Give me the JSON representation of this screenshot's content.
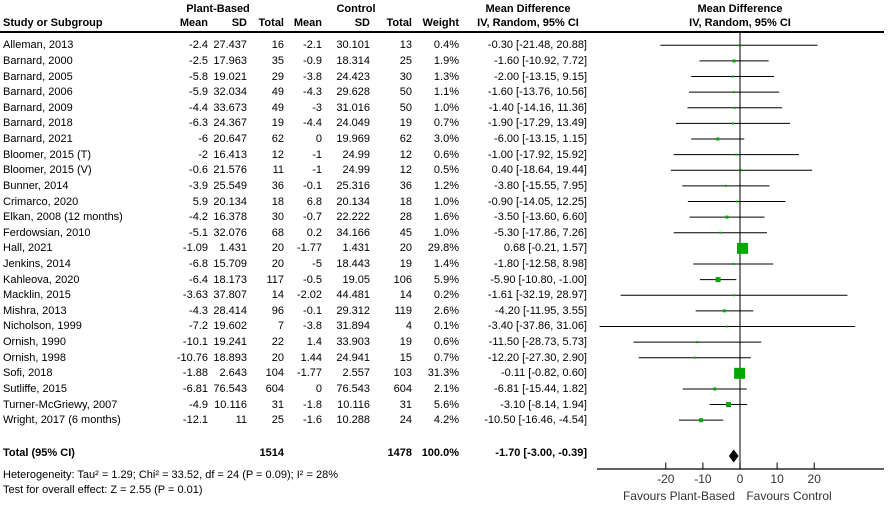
{
  "header": {
    "study_col": "Study or Subgroup",
    "group1": "Plant-Based",
    "group2": "Control",
    "sub_cols": [
      "Mean",
      "SD",
      "Total",
      "Mean",
      "SD",
      "Total",
      "Weight"
    ],
    "md_text": {
      "line1": "Mean Difference",
      "line2": "IV, Random, 95% CI"
    },
    "md_plot": {
      "line1": "Mean Difference",
      "line2": "IV, Random, 95% CI"
    }
  },
  "chart_data": {
    "type": "forest",
    "effect_measure": "Mean Difference IV, Random, 95% CI",
    "studies": [
      {
        "name": "Alleman, 2013",
        "pb_mean": "-2.4",
        "pb_sd": "27.437",
        "pb_total": "16",
        "c_mean": "-2.1",
        "c_sd": "30.101",
        "c_total": "13",
        "weight": "0.4%",
        "est": -0.3,
        "lo": -21.48,
        "hi": 20.88,
        "text": "-0.30 [-21.48, 20.88]"
      },
      {
        "name": "Barnard, 2000",
        "pb_mean": "-2.5",
        "pb_sd": "17.963",
        "pb_total": "35",
        "c_mean": "-0.9",
        "c_sd": "18.314",
        "c_total": "25",
        "weight": "1.9%",
        "est": -1.6,
        "lo": -10.92,
        "hi": 7.72,
        "text": "-1.60 [-10.92, 7.72]"
      },
      {
        "name": "Barnard, 2005",
        "pb_mean": "-5.8",
        "pb_sd": "19.021",
        "pb_total": "29",
        "c_mean": "-3.8",
        "c_sd": "24.423",
        "c_total": "30",
        "weight": "1.3%",
        "est": -2.0,
        "lo": -13.15,
        "hi": 9.15,
        "text": "-2.00 [-13.15, 9.15]"
      },
      {
        "name": "Barnard, 2006",
        "pb_mean": "-5.9",
        "pb_sd": "32.034",
        "pb_total": "49",
        "c_mean": "-4.3",
        "c_sd": "29.628",
        "c_total": "50",
        "weight": "1.1%",
        "est": -1.6,
        "lo": -13.76,
        "hi": 10.56,
        "text": "-1.60 [-13.76, 10.56]"
      },
      {
        "name": "Barnard, 2009",
        "pb_mean": "-4.4",
        "pb_sd": "33.673",
        "pb_total": "49",
        "c_mean": "-3",
        "c_sd": "31.016",
        "c_total": "50",
        "weight": "1.0%",
        "est": -1.4,
        "lo": -14.16,
        "hi": 11.36,
        "text": "-1.40 [-14.16, 11.36]"
      },
      {
        "name": "Barnard, 2018",
        "pb_mean": "-6.3",
        "pb_sd": "24.367",
        "pb_total": "19",
        "c_mean": "-4.4",
        "c_sd": "24.049",
        "c_total": "19",
        "weight": "0.7%",
        "est": -1.9,
        "lo": -17.29,
        "hi": 13.49,
        "text": "-1.90 [-17.29, 13.49]"
      },
      {
        "name": "Barnard, 2021",
        "pb_mean": "-6",
        "pb_sd": "20.647",
        "pb_total": "62",
        "c_mean": "0",
        "c_sd": "19.969",
        "c_total": "62",
        "weight": "3.0%",
        "est": -6.0,
        "lo": -13.15,
        "hi": 1.15,
        "text": "-6.00 [-13.15, 1.15]"
      },
      {
        "name": "Bloomer, 2015 (T)",
        "pb_mean": "-2",
        "pb_sd": "16.413",
        "pb_total": "12",
        "c_mean": "-1",
        "c_sd": "24.99",
        "c_total": "12",
        "weight": "0.6%",
        "est": -1.0,
        "lo": -17.92,
        "hi": 15.92,
        "text": "-1.00 [-17.92, 15.92]"
      },
      {
        "name": "Bloomer, 2015 (V)",
        "pb_mean": "-0.6",
        "pb_sd": "21.576",
        "pb_total": "11",
        "c_mean": "-1",
        "c_sd": "24.99",
        "c_total": "12",
        "weight": "0.5%",
        "est": 0.4,
        "lo": -18.64,
        "hi": 19.44,
        "text": "0.40 [-18.64, 19.44]"
      },
      {
        "name": "Bunner, 2014",
        "pb_mean": "-3.9",
        "pb_sd": "25.549",
        "pb_total": "36",
        "c_mean": "-0.1",
        "c_sd": "25.316",
        "c_total": "36",
        "weight": "1.2%",
        "est": -3.8,
        "lo": -15.55,
        "hi": 7.95,
        "text": "-3.80 [-15.55, 7.95]"
      },
      {
        "name": "Crimarco, 2020",
        "pb_mean": "5.9",
        "pb_sd": "20.134",
        "pb_total": "18",
        "c_mean": "6.8",
        "c_sd": "20.134",
        "c_total": "18",
        "weight": "1.0%",
        "est": -0.9,
        "lo": -14.05,
        "hi": 12.25,
        "text": "-0.90 [-14.05, 12.25]"
      },
      {
        "name": "Elkan, 2008 (12 months)",
        "pb_mean": "-4.2",
        "pb_sd": "16.378",
        "pb_total": "30",
        "c_mean": "-0.7",
        "c_sd": "22.222",
        "c_total": "28",
        "weight": "1.6%",
        "est": -3.5,
        "lo": -13.6,
        "hi": 6.6,
        "text": "-3.50 [-13.60, 6.60]"
      },
      {
        "name": "Ferdowsian, 2010",
        "pb_mean": "-5.1",
        "pb_sd": "32.076",
        "pb_total": "68",
        "c_mean": "0.2",
        "c_sd": "34.166",
        "c_total": "45",
        "weight": "1.0%",
        "est": -5.3,
        "lo": -17.86,
        "hi": 7.26,
        "text": "-5.30 [-17.86, 7.26]"
      },
      {
        "name": "Hall, 2021",
        "pb_mean": "-1.09",
        "pb_sd": "1.431",
        "pb_total": "20",
        "c_mean": "-1.77",
        "c_sd": "1.431",
        "c_total": "20",
        "weight": "29.8%",
        "est": 0.68,
        "lo": -0.21,
        "hi": 1.57,
        "text": "0.68 [-0.21, 1.57]"
      },
      {
        "name": "Jenkins, 2014",
        "pb_mean": "-6.8",
        "pb_sd": "15.709",
        "pb_total": "20",
        "c_mean": "-5",
        "c_sd": "18.443",
        "c_total": "19",
        "weight": "1.4%",
        "est": -1.8,
        "lo": -12.58,
        "hi": 8.98,
        "text": "-1.80 [-12.58, 8.98]"
      },
      {
        "name": "Kahleova, 2020",
        "pb_mean": "-6.4",
        "pb_sd": "18.173",
        "pb_total": "117",
        "c_mean": "-0.5",
        "c_sd": "19.05",
        "c_total": "106",
        "weight": "5.9%",
        "est": -5.9,
        "lo": -10.8,
        "hi": -1.0,
        "text": "-5.90 [-10.80, -1.00]"
      },
      {
        "name": "Macklin, 2015",
        "pb_mean": "-3.63",
        "pb_sd": "37.807",
        "pb_total": "14",
        "c_mean": "-2.02",
        "c_sd": "44.481",
        "c_total": "14",
        "weight": "0.2%",
        "est": -1.61,
        "lo": -32.19,
        "hi": 28.97,
        "text": "-1.61 [-32.19, 28.97]"
      },
      {
        "name": "Mishra, 2013",
        "pb_mean": "-4.3",
        "pb_sd": "28.414",
        "pb_total": "96",
        "c_mean": "-0.1",
        "c_sd": "29.312",
        "c_total": "119",
        "weight": "2.6%",
        "est": -4.2,
        "lo": -11.95,
        "hi": 3.55,
        "text": "-4.20 [-11.95, 3.55]"
      },
      {
        "name": "Nicholson, 1999",
        "pb_mean": "-7.2",
        "pb_sd": "19.602",
        "pb_total": "7",
        "c_mean": "-3.8",
        "c_sd": "31.894",
        "c_total": "4",
        "weight": "0.1%",
        "est": -3.4,
        "lo": -37.86,
        "hi": 31.06,
        "text": "-3.40 [-37.86, 31.06]"
      },
      {
        "name": "Ornish, 1990",
        "pb_mean": "-10.1",
        "pb_sd": "19.241",
        "pb_total": "22",
        "c_mean": "1.4",
        "c_sd": "33.903",
        "c_total": "19",
        "weight": "0.6%",
        "est": -11.5,
        "lo": -28.73,
        "hi": 5.73,
        "text": "-11.50 [-28.73, 5.73]"
      },
      {
        "name": "Ornish, 1998",
        "pb_mean": "-10.76",
        "pb_sd": "18.893",
        "pb_total": "20",
        "c_mean": "1.44",
        "c_sd": "24.941",
        "c_total": "15",
        "weight": "0.7%",
        "est": -12.2,
        "lo": -27.3,
        "hi": 2.9,
        "text": "-12.20 [-27.30, 2.90]"
      },
      {
        "name": "Sofi, 2018",
        "pb_mean": "-1.88",
        "pb_sd": "2.643",
        "pb_total": "104",
        "c_mean": "-1.77",
        "c_sd": "2.557",
        "c_total": "103",
        "weight": "31.3%",
        "est": -0.11,
        "lo": -0.82,
        "hi": 0.6,
        "text": "-0.11 [-0.82, 0.60]"
      },
      {
        "name": "Sutliffe, 2015",
        "pb_mean": "-6.81",
        "pb_sd": "76.543",
        "pb_total": "604",
        "c_mean": "0",
        "c_sd": "76.543",
        "c_total": "604",
        "weight": "2.1%",
        "est": -6.81,
        "lo": -15.44,
        "hi": 1.82,
        "text": "-6.81 [-15.44, 1.82]"
      },
      {
        "name": "Turner-McGriewy, 2007",
        "pb_mean": "-4.9",
        "pb_sd": "10.116",
        "pb_total": "31",
        "c_mean": "-1.8",
        "c_sd": "10.116",
        "c_total": "31",
        "weight": "5.6%",
        "est": -3.1,
        "lo": -8.14,
        "hi": 1.94,
        "text": "-3.10 [-8.14, 1.94]"
      },
      {
        "name": "Wright, 2017 (6 months)",
        "pb_mean": "-12.1",
        "pb_sd": "11",
        "pb_total": "25",
        "c_mean": "-1.6",
        "c_sd": "10.288",
        "c_total": "24",
        "weight": "4.2%",
        "est": -10.5,
        "lo": -16.46,
        "hi": -4.54,
        "text": "-10.50 [-16.46, -4.54]"
      }
    ],
    "total": {
      "label": "Total (95% CI)",
      "pb_total": "1514",
      "c_total": "1478",
      "weight": "100.0%",
      "est": -1.7,
      "lo": -3.0,
      "hi": -0.39,
      "text": "-1.70 [-3.00, -0.39]"
    },
    "footnotes": [
      "Heterogeneity: Tau² = 1.29; Chi² = 33.52, df = 24 (P = 0.09); I² = 28%",
      "Test for overall effect: Z = 2.55 (P = 0.01)"
    ],
    "axis": {
      "ticks": [
        -20,
        -10,
        0,
        10,
        20
      ],
      "xmin": -38.5,
      "xmax": 39,
      "favours_left": "Favours Plant-Based",
      "favours_right": "Favours Control"
    },
    "colors": {
      "marker": "#00a800",
      "diamond": "#000000",
      "line": "#000000",
      "zero_line": "#3a3a3a",
      "axis_text": "#333333"
    }
  }
}
